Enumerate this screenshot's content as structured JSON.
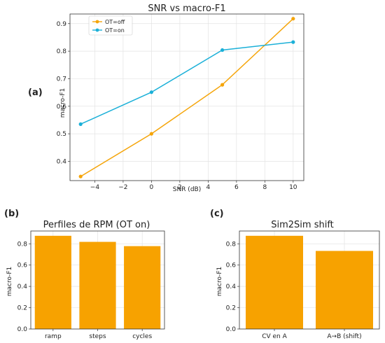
{
  "chart_data": [
    {
      "panel_label": "(a)",
      "type": "line",
      "title": "SNR vs macro-F1",
      "xlabel": "SNR (dB)",
      "ylabel": "macro-F1",
      "x": [
        -5,
        0,
        5,
        10
      ],
      "xticks": [
        -4,
        -2,
        0,
        2,
        4,
        6,
        8,
        10
      ],
      "yticks": [
        0.4,
        0.5,
        0.6,
        0.7,
        0.8,
        0.9
      ],
      "xlim": [
        -5.75,
        10.75
      ],
      "ylim": [
        0.33,
        0.935
      ],
      "grid": true,
      "legend_position": "top-left",
      "series": [
        {
          "name": "OT=off",
          "color": "#f5a50a",
          "values": [
            0.345,
            0.5,
            0.678,
            0.918
          ]
        },
        {
          "name": "OT=on",
          "color": "#1bb0d8",
          "values": [
            0.535,
            0.651,
            0.804,
            0.833
          ]
        }
      ]
    },
    {
      "panel_label": "(b)",
      "type": "bar",
      "title": "Perfiles de RPM (OT on)",
      "xlabel": "",
      "ylabel": "macro-F1",
      "categories": [
        "ramp",
        "steps",
        "cycles"
      ],
      "values": [
        0.875,
        0.818,
        0.778
      ],
      "yticks": [
        0.0,
        0.2,
        0.4,
        0.6,
        0.8
      ],
      "ylim": [
        0,
        0.92
      ],
      "grid": true,
      "color": "#f7a200"
    },
    {
      "panel_label": "(c)",
      "type": "bar",
      "title": "Sim2Sim shift",
      "xlabel": "",
      "ylabel": "macro-F1",
      "categories": [
        "CV en A",
        "A→B (shift)"
      ],
      "values": [
        0.875,
        0.733
      ],
      "yticks": [
        0.0,
        0.2,
        0.4,
        0.6,
        0.8
      ],
      "ylim": [
        0,
        0.92
      ],
      "grid": true,
      "color": "#f7a200"
    }
  ]
}
